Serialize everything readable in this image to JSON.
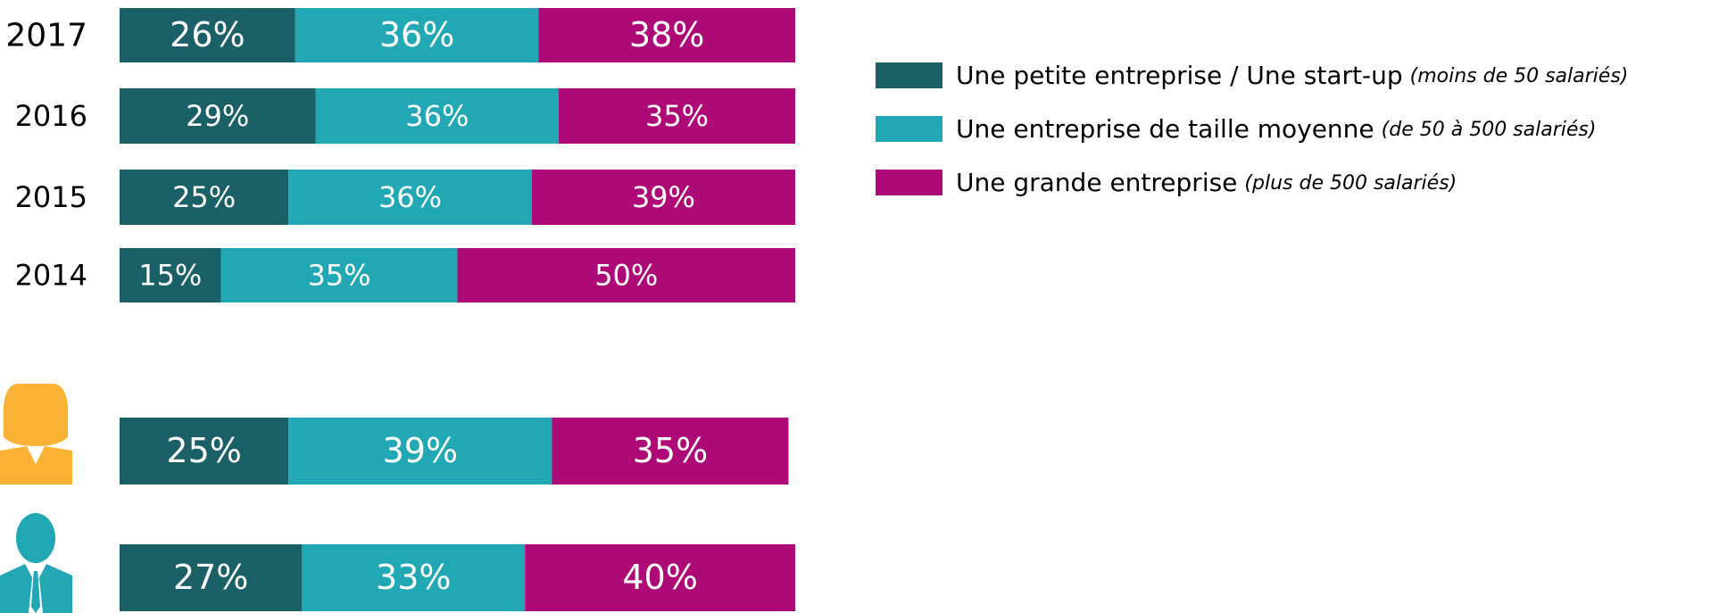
{
  "chart_data": {
    "type": "bar",
    "orientation": "horizontal",
    "stacked": true,
    "categories": [
      "2017",
      "2016",
      "2015",
      "2014",
      null,
      null
    ],
    "xlim": [
      0,
      100
    ],
    "series": [
      {
        "name": "Une petite entreprise / Une start-up",
        "note": "(moins de 50 salariés)",
        "color": "#1b6066",
        "values": [
          26,
          29,
          25,
          15,
          25,
          27
        ],
        "value_labels": [
          "26%",
          "29%",
          "25%",
          "15%",
          "25%",
          "27%"
        ]
      },
      {
        "name": "Une entreprise de taille moyenne",
        "note": "(de 50 à 500 salariés)",
        "color": "#22a7b4",
        "values": [
          36,
          36,
          36,
          35,
          39,
          33
        ],
        "value_labels": [
          "36%",
          "36%",
          "36%",
          "35%",
          "39%",
          "33%"
        ]
      },
      {
        "name": "Une grande entreprise",
        "note": "(plus de 500 salariés)",
        "color": "#ad0a78",
        "values": [
          38,
          35,
          39,
          50,
          35,
          40
        ],
        "value_labels": [
          "38%",
          "35%",
          "39%",
          "50%",
          "35%",
          "40%"
        ]
      }
    ]
  }
}
